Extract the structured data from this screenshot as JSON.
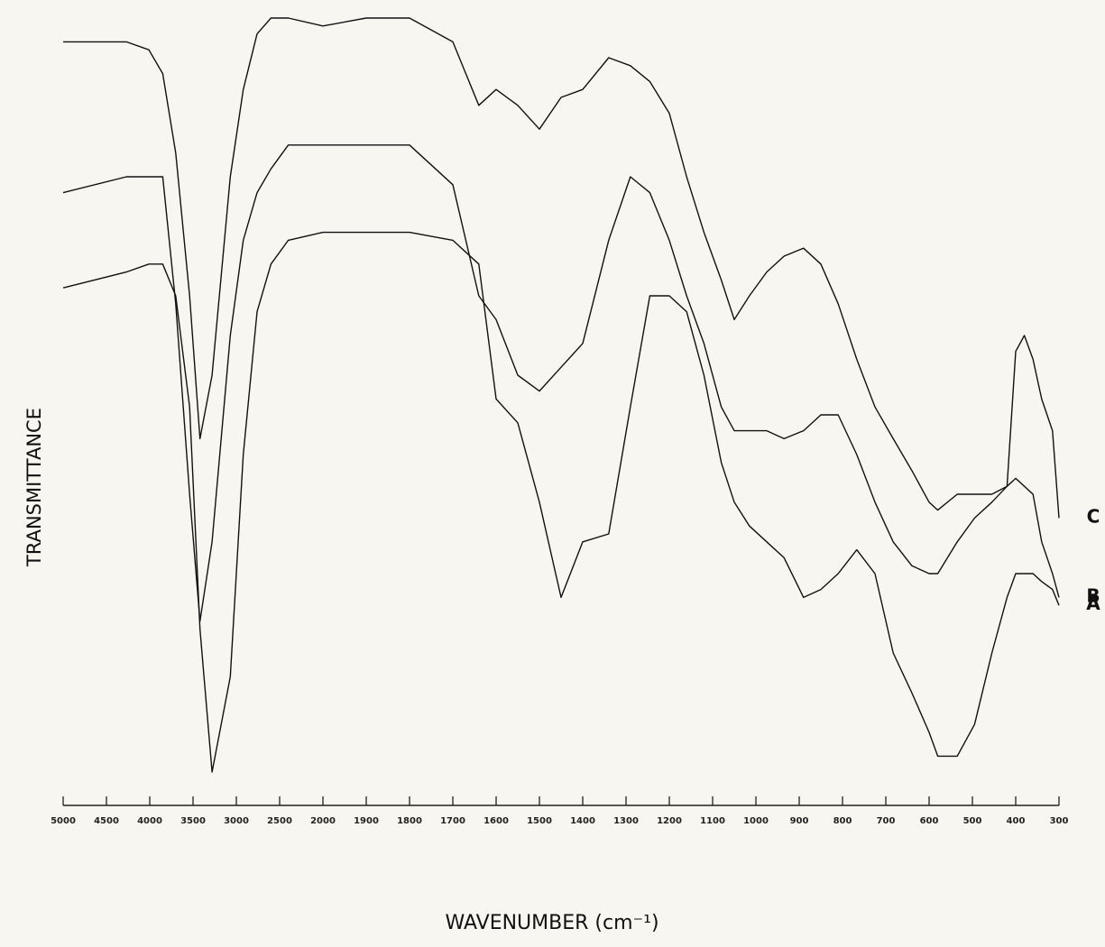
{
  "chart_data": {
    "type": "line",
    "x_label": "WAVENUMBER (cm⁻¹)",
    "y_label": "TRANSMITTANCE",
    "x": [
      5000,
      4270,
      4010,
      3850,
      3700,
      3540,
      3420,
      3280,
      3070,
      2920,
      2760,
      2600,
      2400,
      2000,
      1900,
      1800,
      1700,
      1640,
      1600,
      1550,
      1500,
      1450,
      1400,
      1340,
      1290,
      1245,
      1200,
      1160,
      1120,
      1080,
      1050,
      1015,
      975,
      935,
      890,
      850,
      810,
      767,
      725,
      683,
      640,
      600,
      580,
      535,
      495,
      455,
      420,
      400,
      380,
      360,
      340,
      315,
      300
    ],
    "series": [
      {
        "name": "C",
        "color": "#111111",
        "values": [
          97,
          97,
          96,
          93,
          83,
          65,
          47,
          55,
          80,
          91,
          98,
          100,
          100,
          99,
          100,
          100,
          97,
          89,
          91,
          89,
          86,
          90,
          91,
          95,
          94,
          92,
          88,
          80,
          73,
          67,
          62,
          65,
          68,
          70,
          71,
          69,
          64,
          57,
          51,
          47,
          43,
          39,
          38,
          40,
          40,
          40,
          41,
          58,
          60,
          57,
          52,
          48,
          37
        ]
      },
      {
        "name": "B",
        "color": "#111111",
        "values": [
          78,
          80,
          80,
          80,
          64,
          40,
          24,
          34,
          60,
          72,
          78,
          81,
          84,
          84,
          84,
          84,
          79,
          65,
          62,
          55,
          53,
          56,
          59,
          72,
          80,
          78,
          72,
          65,
          59,
          51,
          48,
          48,
          48,
          47,
          48,
          50,
          50,
          45,
          39,
          34,
          31,
          30,
          30,
          34,
          37,
          39,
          41,
          42,
          41,
          40,
          34,
          30,
          27
        ]
      },
      {
        "name": "A",
        "color": "#111111",
        "values": [
          66,
          68,
          69,
          69,
          65,
          51,
          23,
          5,
          17,
          45,
          63,
          69,
          72,
          73,
          73,
          73,
          72,
          69,
          52,
          49,
          39,
          27,
          34,
          35,
          51,
          65,
          65,
          63,
          55,
          44,
          39,
          36,
          34,
          32,
          27,
          28,
          30,
          33,
          30,
          20,
          15,
          10,
          7,
          7,
          11,
          20,
          27,
          30,
          30,
          30,
          29,
          28,
          26
        ]
      }
    ],
    "xlim": [
      5000,
      300
    ],
    "xticks": [
      5000,
      4500,
      4000,
      3500,
      3000,
      2500,
      2000,
      1900,
      1800,
      1700,
      1600,
      1500,
      1400,
      1300,
      1200,
      1100,
      1000,
      900,
      800,
      700,
      600,
      500,
      400,
      300
    ],
    "ylim": [
      0,
      100
    ]
  }
}
